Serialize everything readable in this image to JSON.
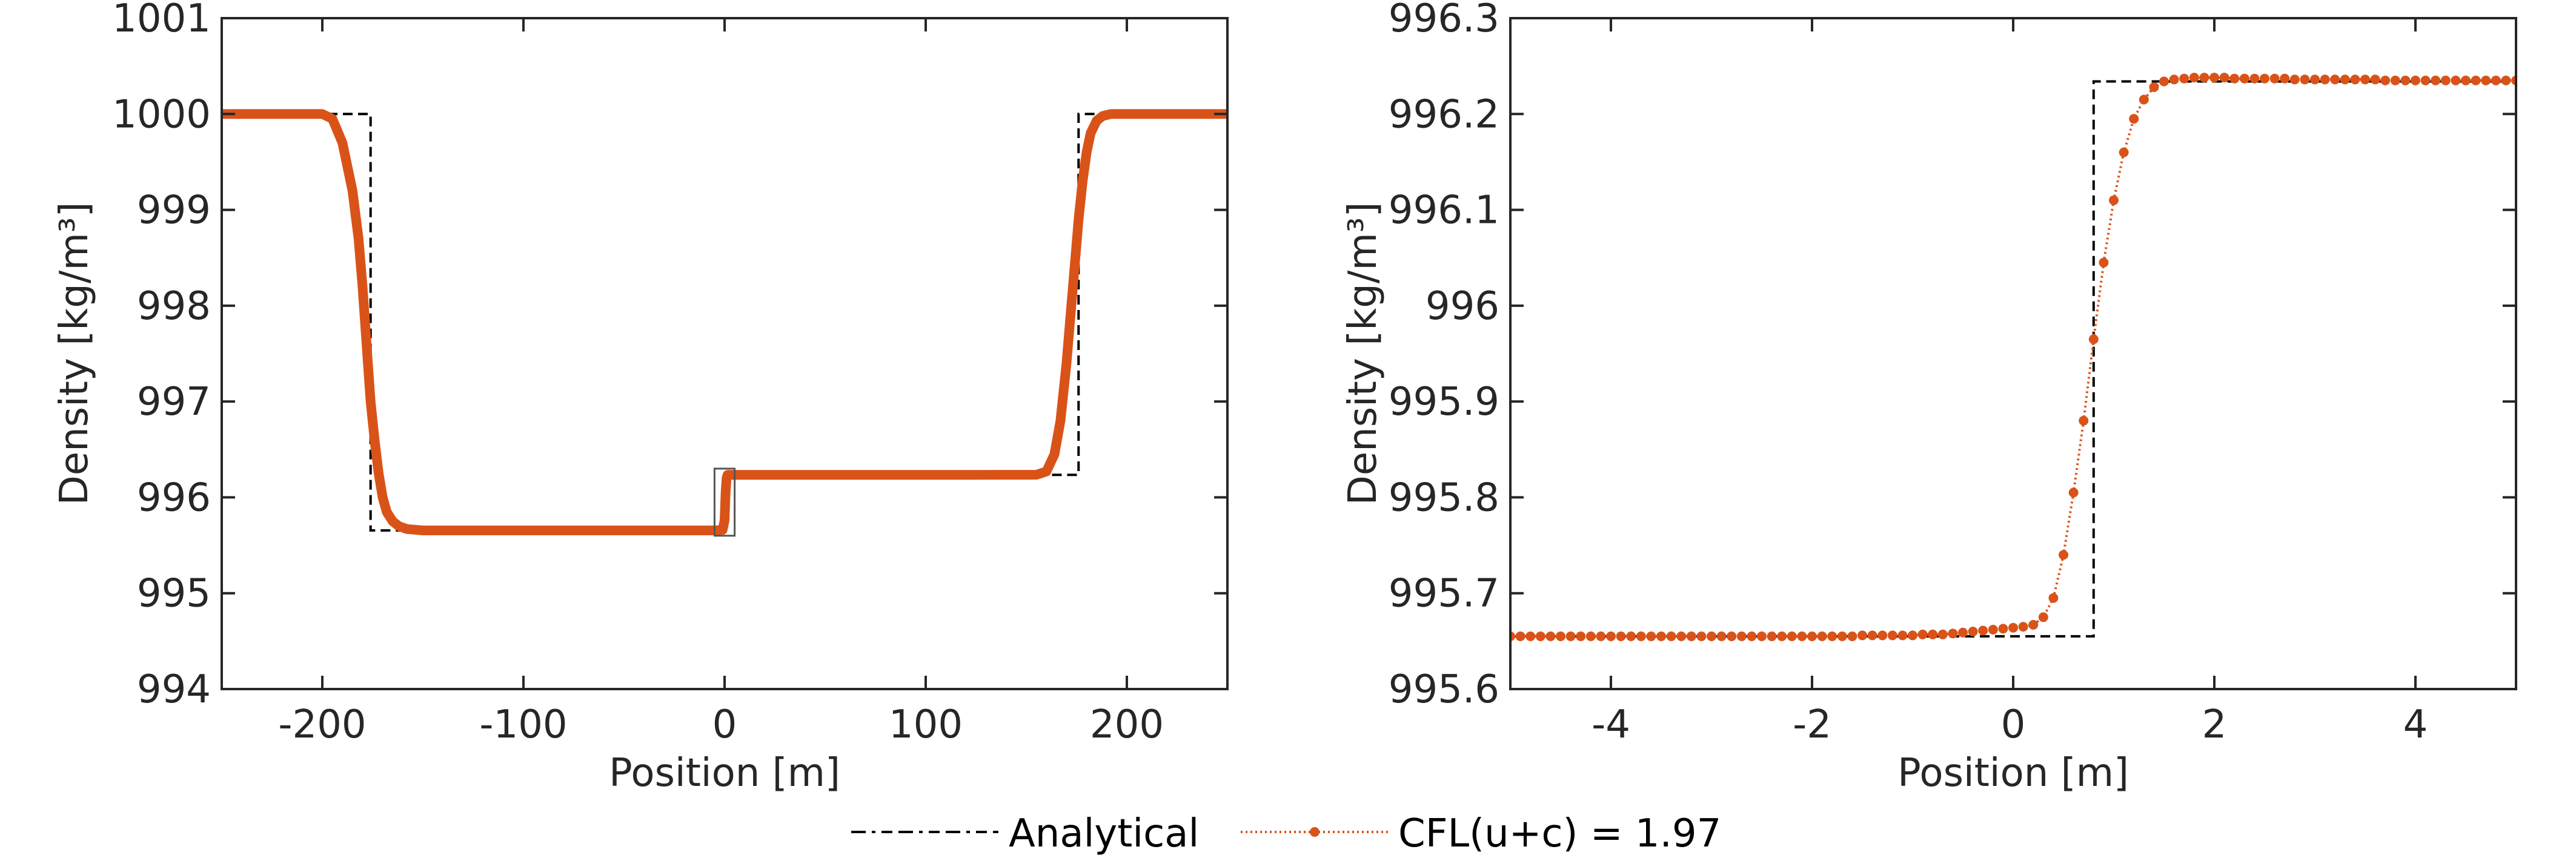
{
  "chart_data": [
    {
      "type": "line",
      "title": "",
      "xlabel": "Position [m]",
      "ylabel": "Density [kg/m³]",
      "xlim": [
        -250,
        250
      ],
      "ylim": [
        994,
        1001
      ],
      "xticks": [
        -200,
        -100,
        0,
        100,
        200
      ],
      "yticks": [
        994,
        995,
        996,
        997,
        998,
        999,
        1000,
        1001
      ],
      "grid": false,
      "zoom_box": {
        "x": [
          -5,
          5
        ],
        "y": [
          995.6,
          996.3
        ]
      },
      "series": [
        {
          "name": "Analytical",
          "style": "dashed",
          "color": "#000000",
          "x": [
            -250,
            -176,
            -176,
            -2,
            -2,
            0.8,
            0.8,
            176,
            176,
            250
          ],
          "y": [
            1000,
            1000,
            995.655,
            995.655,
            995.655,
            995.655,
            996.235,
            996.235,
            1000,
            1000
          ]
        },
        {
          "name": "CFL(u+c) = 1.97",
          "style": "solid-markers",
          "color": "#D95319",
          "x": [
            -250,
            -200,
            -195,
            -190,
            -185,
            -182,
            -180,
            -178,
            -176,
            -174,
            -172,
            -170,
            -168,
            -165,
            -162,
            -158,
            -150,
            -120,
            -60,
            -5,
            -1,
            0,
            0.5,
            1,
            1.5,
            5,
            60,
            120,
            155,
            160,
            164,
            167,
            170,
            172,
            174,
            176,
            178,
            180,
            182,
            185,
            188,
            192,
            200,
            250
          ],
          "y": [
            1000,
            1000,
            999.95,
            999.7,
            999.2,
            998.7,
            998.2,
            997.6,
            997.0,
            996.6,
            996.25,
            996.0,
            995.85,
            995.75,
            995.7,
            995.67,
            995.655,
            995.655,
            995.655,
            995.655,
            995.66,
            995.76,
            996.05,
            996.2,
            996.235,
            996.235,
            996.235,
            996.235,
            996.236,
            996.27,
            996.45,
            996.8,
            997.4,
            997.9,
            998.4,
            998.9,
            999.3,
            999.6,
            999.8,
            999.93,
            999.98,
            1000,
            1000,
            1000
          ]
        }
      ]
    },
    {
      "type": "line",
      "title": "",
      "xlabel": "Position [m]",
      "ylabel": "Density [kg/m³]",
      "xlim": [
        -5,
        5
      ],
      "ylim": [
        995.6,
        996.3
      ],
      "xticks": [
        -4,
        -2,
        0,
        2,
        4
      ],
      "yticks": [
        995.6,
        995.7,
        995.8,
        995.9,
        996,
        996.1,
        996.2,
        996.3
      ],
      "grid": false,
      "series": [
        {
          "name": "Analytical",
          "style": "dashed",
          "color": "#000000",
          "x": [
            -5,
            0.8,
            0.8,
            5
          ],
          "y": [
            995.655,
            995.655,
            996.234,
            996.234
          ]
        },
        {
          "name": "CFL(u+c) = 1.97",
          "style": "dotted-markers",
          "color": "#D95319",
          "x_start": -5,
          "x_step": 0.1,
          "y": [
            995.655,
            995.655,
            995.655,
            995.655,
            995.655,
            995.655,
            995.655,
            995.655,
            995.655,
            995.655,
            995.655,
            995.655,
            995.655,
            995.655,
            995.655,
            995.655,
            995.655,
            995.655,
            995.655,
            995.655,
            995.655,
            995.655,
            995.655,
            995.655,
            995.655,
            995.655,
            995.655,
            995.655,
            995.655,
            995.655,
            995.655,
            995.655,
            995.655,
            995.655,
            995.655,
            995.656,
            995.656,
            995.656,
            995.656,
            995.656,
            995.656,
            995.657,
            995.657,
            995.657,
            995.658,
            995.659,
            995.66,
            995.661,
            995.662,
            995.663,
            995.664,
            995.665,
            995.667,
            995.675,
            995.695,
            995.74,
            995.805,
            995.88,
            995.965,
            996.045,
            996.11,
            996.16,
            996.195,
            996.215,
            996.228,
            996.234,
            996.236,
            996.237,
            996.238,
            996.238,
            996.238,
            996.238,
            996.237,
            996.237,
            996.237,
            996.237,
            996.237,
            996.237,
            996.236,
            996.236,
            996.236,
            996.236,
            996.236,
            996.236,
            996.236,
            996.236,
            996.236,
            996.235,
            996.235,
            996.235,
            996.235,
            996.235,
            996.235,
            996.235,
            996.235,
            996.235,
            996.235,
            996.235,
            996.235,
            996.235,
            996.235
          ]
        }
      ]
    }
  ],
  "legend": {
    "placement": "bottom-center",
    "entries": [
      "Analytical",
      "CFL(u+c) = 1.97"
    ]
  }
}
